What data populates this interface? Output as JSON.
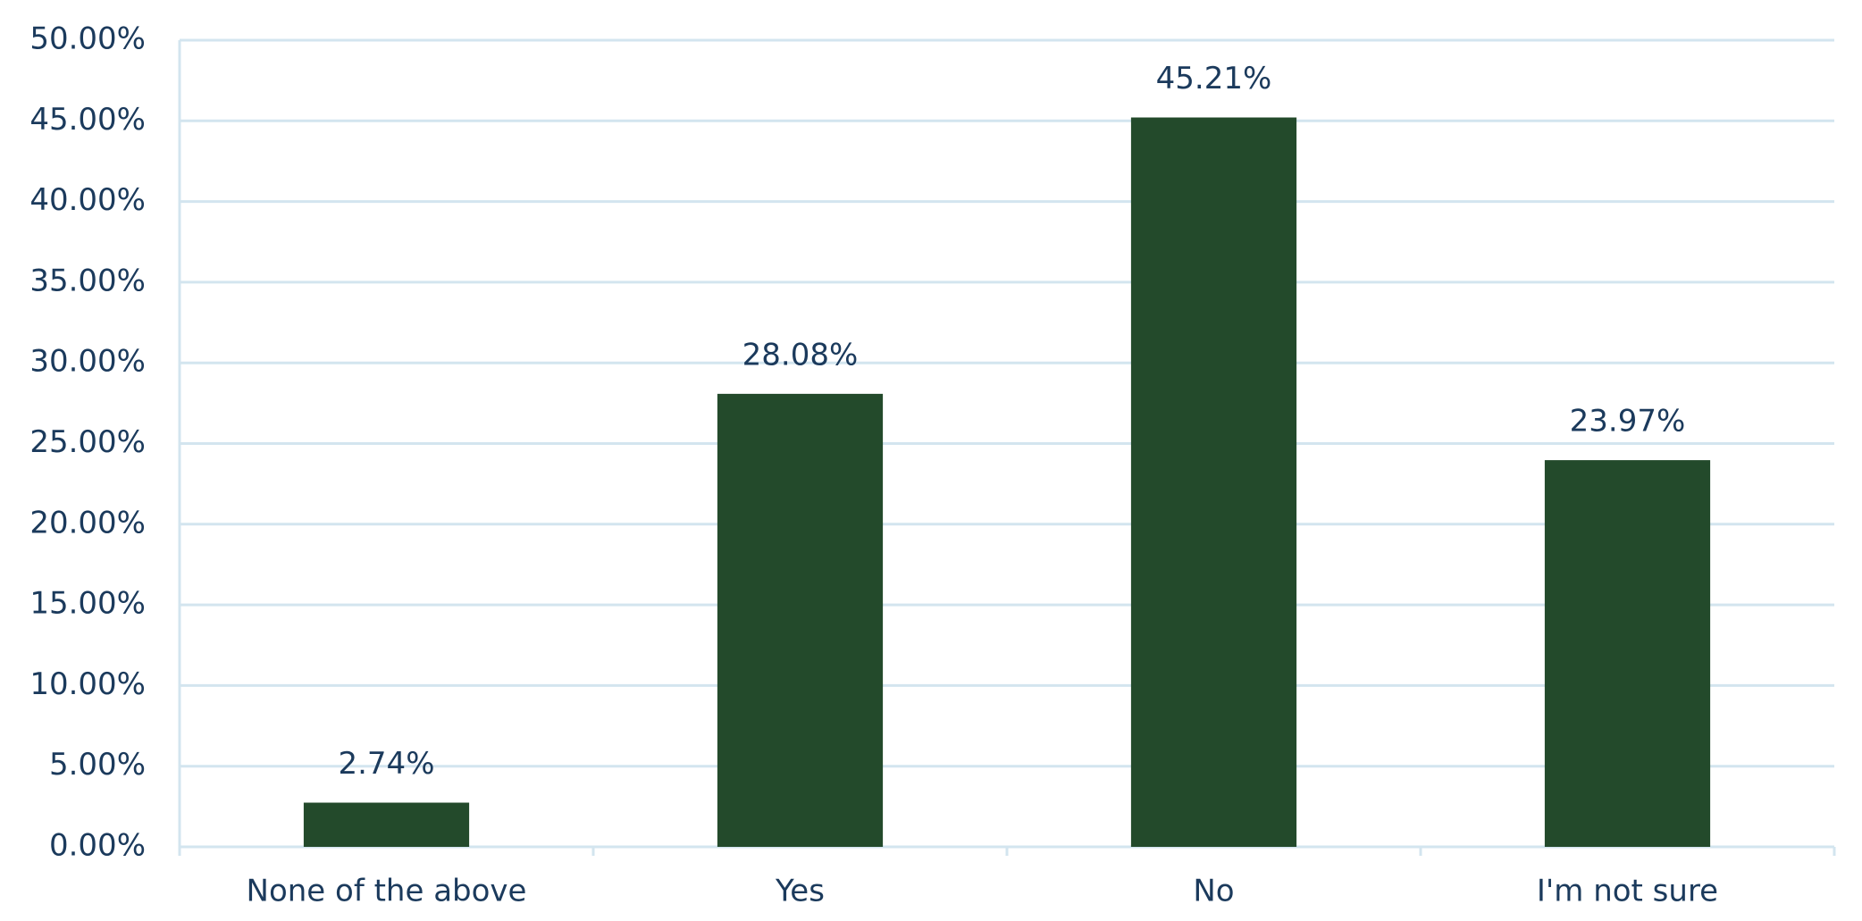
{
  "chart_data": {
    "type": "bar",
    "categories": [
      "None of the above",
      "Yes",
      "No",
      "I'm not sure"
    ],
    "values": [
      2.74,
      28.08,
      45.21,
      23.97
    ],
    "value_labels": [
      "2.74%",
      "28.08%",
      "45.21%",
      "23.97%"
    ],
    "color": "#234a2b",
    "ylim": [
      0,
      50
    ],
    "yticks": [
      {
        "value": 0,
        "label": "0.00%"
      },
      {
        "value": 5,
        "label": "5.00%"
      },
      {
        "value": 10,
        "label": "10.00%"
      },
      {
        "value": 15,
        "label": "15.00%"
      },
      {
        "value": 20,
        "label": "20.00%"
      },
      {
        "value": 25,
        "label": "25.00%"
      },
      {
        "value": 30,
        "label": "30.00%"
      },
      {
        "value": 35,
        "label": "35.00%"
      },
      {
        "value": 40,
        "label": "40.00%"
      },
      {
        "value": 45,
        "label": "45.00%"
      },
      {
        "value": 50,
        "label": "50.00%"
      }
    ],
    "grid": true
  }
}
